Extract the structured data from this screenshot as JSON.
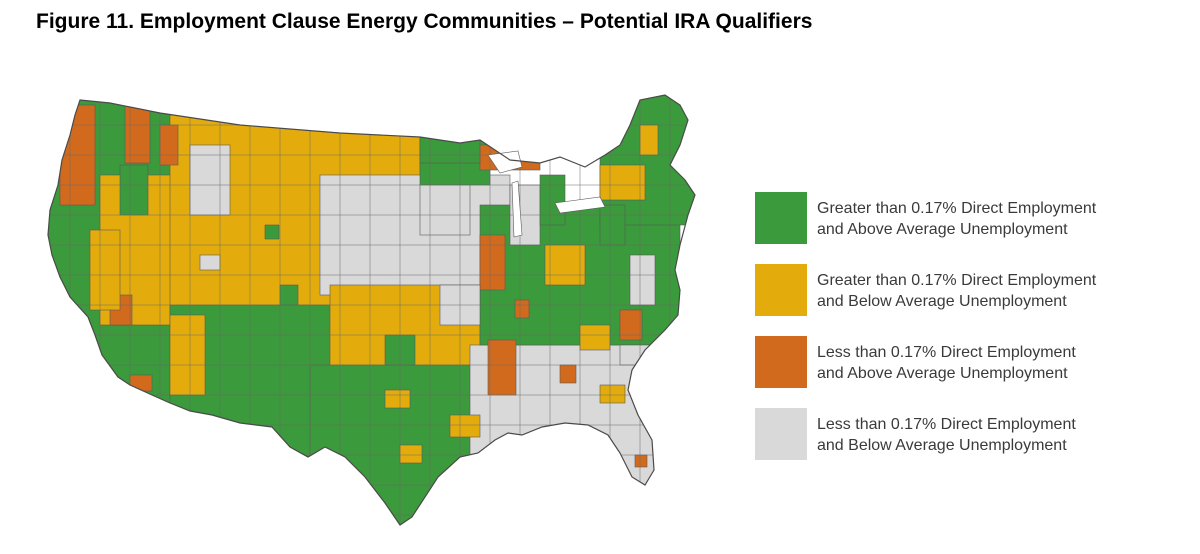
{
  "title": "Figure 11. Employment Clause Energy Communities – Potential IRA Qualifiers",
  "colors": {
    "green": "#3b9a3b",
    "yellow": "#e3ac0c",
    "orange": "#d16a1c",
    "gray": "#d9d9d9",
    "border": "#5a5a5a"
  },
  "legend": [
    {
      "label": "Greater than 0.17% Direct Employment\nand Above Average Unemployment",
      "color": "#3b9a3b"
    },
    {
      "label": "Greater than 0.17% Direct Employment\nand Below Average Unemployment",
      "color": "#e3ac0c"
    },
    {
      "label": "Less than 0.17% Direct Employment\nand Above Average Unemployment",
      "color": "#d16a1c"
    },
    {
      "label": "Less than 0.17% Direct Employment\nand Below Average Unemployment",
      "color": "#d9d9d9"
    }
  ]
}
